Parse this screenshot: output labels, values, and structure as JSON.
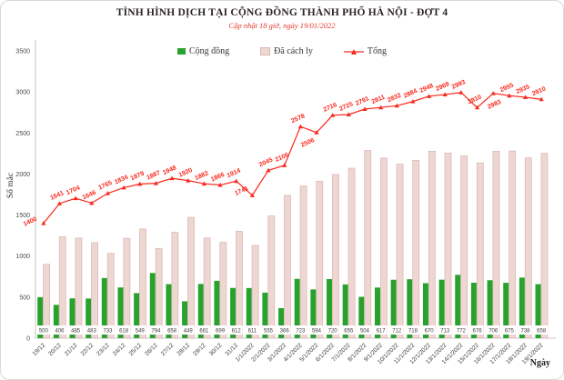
{
  "title": "TÌNH HÌNH DỊCH TẠI CỘNG ĐỒNG THÀNH PHỐ HÀ NỘI - ĐỢT 4",
  "subtitle": "Cập nhật 18 giờ, ngày 19/01/2022",
  "legend": {
    "cong_dong": "Cộng đồng",
    "da_cach_ly": "Đã cách ly",
    "tong": "Tổng"
  },
  "colors": {
    "cong_dong": "#28a22c",
    "da_cach_ly_fill": "#eed7d2",
    "da_cach_ly_border": "#dcb9b2",
    "tong": "#f9291d",
    "subtitle": "#e8372b",
    "axis": "#c6c6c6"
  },
  "chart_data": {
    "type": "bar",
    "title": "TÌNH HÌNH DỊCH TẠI CỘNG ĐỒNG THÀNH PHỐ HÀ NỘI - ĐỢT 4",
    "subtitle": "Cập nhật 18 giờ, ngày 19/01/2022",
    "xlabel": "Ngày",
    "ylabel": "Số mắc",
    "ylim": [
      0,
      3500
    ],
    "y_ticks": [
      0,
      500,
      1000,
      1500,
      2000,
      2500,
      3000,
      3500
    ],
    "grid": false,
    "legend_position": "top",
    "categories": [
      "19/12",
      "20/12",
      "21/12",
      "22/12",
      "23/12",
      "24/12",
      "25/12",
      "26/12",
      "27/12",
      "28/12",
      "29/12",
      "30/12",
      "31/12",
      "1/1/2022",
      "2/1/2022",
      "3/1/2022",
      "4/1/2022",
      "5/1/2022",
      "6/1/2022",
      "7/1/2022",
      "8/1/2022",
      "9/1/2022",
      "10/1/2022",
      "11/1/2022",
      "12/1/2022",
      "13/1/2022",
      "14/1/2022",
      "15/1/2022",
      "16/1/2022",
      "17/1/2022",
      "18/1/2022",
      "19/1/2022"
    ],
    "series": [
      {
        "name": "Cộng đồng",
        "type": "bar",
        "color": "#28a22c",
        "values": [
          500,
          406,
          485,
          483,
          733,
          618,
          549,
          794,
          658,
          449,
          661,
          699,
          612,
          611,
          555,
          366,
          723,
          594,
          720,
          655,
          504,
          617,
          712,
          718,
          670,
          713,
          772,
          676,
          706,
          675,
          738,
          658
        ]
      },
      {
        "name": "Đã cách ly",
        "type": "bar",
        "color": "#eed7d2",
        "border": "#dcb9b2",
        "values": [
          900,
          1235,
          1219,
          1163,
          1032,
          1216,
          1330,
          1093,
          1290,
          1471,
          1221,
          1167,
          1302,
          1130,
          1490,
          1740,
          1855,
          1912,
          1996,
          2070,
          2287,
          2194,
          2120,
          2166,
          2278,
          2256,
          2221,
          2134,
          2277,
          2280,
          2197,
          2252
        ]
      },
      {
        "name": "Tổng",
        "type": "line",
        "color": "#f9291d",
        "values": [
          1400,
          1641,
          1704,
          1646,
          1765,
          1834,
          1879,
          1887,
          1948,
          1920,
          1882,
          1866,
          1914,
          1741,
          2045,
          2106,
          2578,
          2506,
          2716,
          2725,
          2791,
          2811,
          2832,
          2884,
          2948,
          2969,
          2993,
          2810,
          2983,
          2955,
          2935,
          2910
        ]
      }
    ]
  }
}
